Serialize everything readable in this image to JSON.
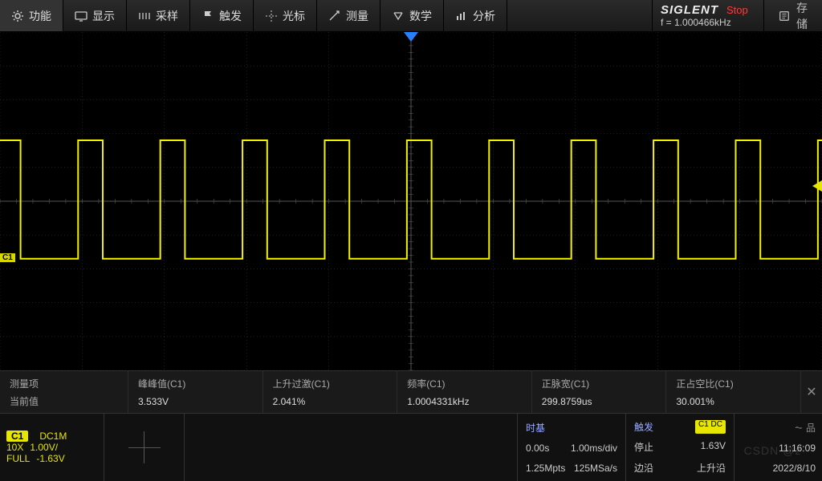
{
  "toolbar": {
    "items": [
      {
        "icon": "gear",
        "label": "功能"
      },
      {
        "icon": "display",
        "label": "显示"
      },
      {
        "icon": "sample",
        "label": "采样"
      },
      {
        "icon": "flag",
        "label": "触发"
      },
      {
        "icon": "cursor",
        "label": "光标"
      },
      {
        "icon": "measure",
        "label": "测量"
      },
      {
        "icon": "math",
        "label": "数学"
      },
      {
        "icon": "analyze",
        "label": "分析"
      }
    ],
    "brand": "SIGLENT",
    "run_state": "Stop",
    "freq_readout": "f = 1.000466kHz",
    "save_label": "存储"
  },
  "waveform": {
    "type": "square-wave",
    "trace_color": "#f2f200",
    "background_color": "#000000",
    "grid_color": "#333333",
    "grid_center_color": "#555555",
    "h_divs": 10,
    "v_divs": 10,
    "high_level_div": 1.8,
    "low_level_div": -1.7,
    "duty_cycle_pct": 30.0,
    "periods_shown": 10,
    "channel_tag": "C1",
    "channel_tag_div": -1.7,
    "trigger_marker_div": 0.45,
    "trigger_marker_color": "#e6e600",
    "time_marker_color": "#2a7fff"
  },
  "measure": {
    "row1_label": "测量项",
    "row2_label": "当前值",
    "cols": [
      {
        "name": "峰峰值(C1)",
        "value": "3.533V"
      },
      {
        "name": "上升过激(C1)",
        "value": "2.041%"
      },
      {
        "name": "频率(C1)",
        "value": "1.0004331kHz"
      },
      {
        "name": "正脉宽(C1)",
        "value": "299.8759us"
      },
      {
        "name": "正占空比(C1)",
        "value": "30.001%"
      }
    ]
  },
  "channel": {
    "badge": "C1",
    "coupling": "DC1M",
    "probe": "10X",
    "vdiv": "1.00V/",
    "bw": "FULL",
    "offset": "-1.63V"
  },
  "timebase": {
    "title": "时基",
    "delay": "0.00s",
    "scale": "1.00ms/div",
    "points": "1.25Mpts",
    "rate": "125MSa/s"
  },
  "trigger": {
    "title": "触发",
    "ch_badge": "C1 DC",
    "state": "停止",
    "level": "1.63V",
    "type": "边沿",
    "slope": "上升沿"
  },
  "clock": {
    "time": "11:16:09",
    "date": "2022/8/10"
  },
  "watermark": "CSDN @z·"
}
